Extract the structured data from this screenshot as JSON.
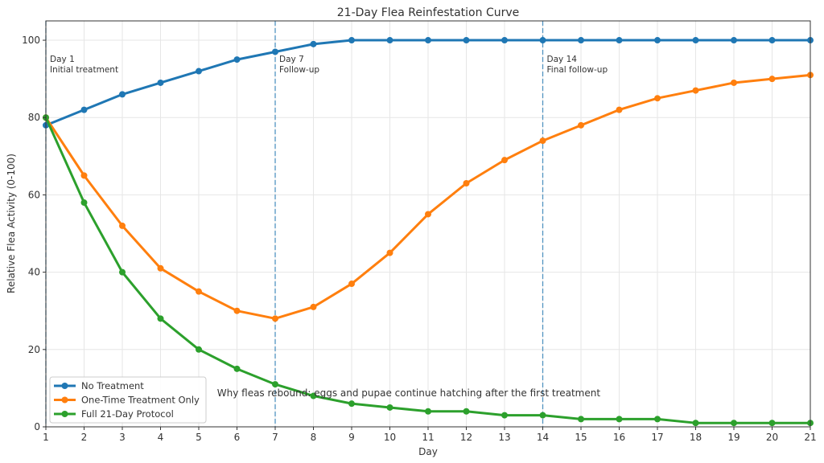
{
  "chart_data": {
    "type": "line",
    "title": "21-Day Flea Reinfestation Curve",
    "xlabel": "Day",
    "ylabel": "Relative Flea Activity (0-100)",
    "xlim": [
      1,
      21
    ],
    "ylim": [
      0,
      105
    ],
    "xticks": [
      1,
      2,
      3,
      4,
      5,
      6,
      7,
      8,
      9,
      10,
      11,
      12,
      13,
      14,
      15,
      16,
      17,
      18,
      19,
      20,
      21
    ],
    "yticks": [
      0,
      20,
      40,
      60,
      80,
      100
    ],
    "grid": true,
    "legend_position": "bottom-left",
    "x": [
      1,
      2,
      3,
      4,
      5,
      6,
      7,
      8,
      9,
      10,
      11,
      12,
      13,
      14,
      15,
      16,
      17,
      18,
      19,
      20,
      21
    ],
    "series": [
      {
        "name": "No Treatment",
        "color": "#1f77b4",
        "values": [
          78,
          82,
          86,
          89,
          92,
          95,
          97,
          99,
          100,
          100,
          100,
          100,
          100,
          100,
          100,
          100,
          100,
          100,
          100,
          100,
          100
        ]
      },
      {
        "name": "One-Time Treatment Only",
        "color": "#ff7f0e",
        "values": [
          80,
          65,
          52,
          41,
          35,
          30,
          28,
          31,
          37,
          45,
          55,
          63,
          69,
          74,
          78,
          82,
          85,
          87,
          89,
          90,
          91
        ]
      },
      {
        "name": "Full 21-Day Protocol",
        "color": "#2ca02c",
        "values": [
          80,
          58,
          40,
          28,
          20,
          15,
          11,
          8,
          6,
          5,
          4,
          4,
          3,
          3,
          2,
          2,
          2,
          1,
          1,
          1,
          1
        ]
      }
    ],
    "vlines": [
      {
        "x": 1,
        "line1": "Day 1",
        "line2": "Initial treatment"
      },
      {
        "x": 7,
        "line1": "Day 7",
        "line2": "Follow-up"
      },
      {
        "x": 14,
        "line1": "Day 14",
        "line2": "Final follow-up"
      }
    ],
    "annotation": {
      "text": "Why fleas rebound: eggs and pupae continue hatching after the first treatment",
      "x": 5.5,
      "y": 8.7
    }
  }
}
